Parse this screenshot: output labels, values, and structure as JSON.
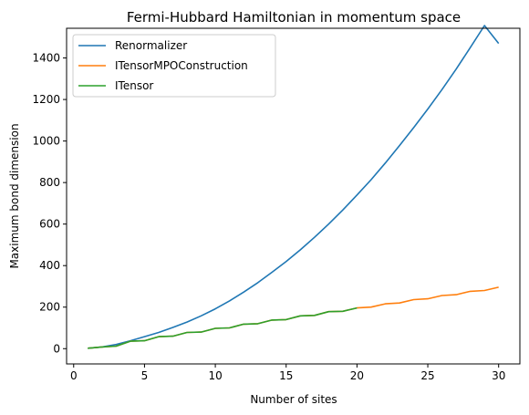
{
  "chart_data": {
    "type": "line",
    "title": "Fermi-Hubbard Hamiltonian in momentum space",
    "xlabel": "Number of sites",
    "ylabel": "Maximum bond dimension",
    "xlim": [
      -0.5,
      31.5
    ],
    "ylim": [
      -73.5,
      1543
    ],
    "xticks": [
      0,
      5,
      10,
      15,
      20,
      25,
      30
    ],
    "yticks": [
      0,
      200,
      400,
      600,
      800,
      1000,
      1200,
      1400
    ],
    "grid": false,
    "legend_position": "top-left",
    "series": [
      {
        "name": "Renormalizer",
        "color": "#1f77b4",
        "x": [
          1,
          2,
          3,
          4,
          5,
          6,
          7,
          8,
          9,
          10,
          11,
          12,
          13,
          14,
          15,
          16,
          17,
          18,
          19,
          20,
          21,
          22,
          23,
          24,
          25,
          26,
          27,
          28,
          29,
          30
        ],
        "y": [
          2,
          8,
          20,
          38,
          58,
          78,
          102,
          128,
          158,
          192,
          230,
          272,
          318,
          368,
          420,
          476,
          536,
          600,
          668,
          740,
          814,
          894,
          978,
          1064,
          1154,
          1248,
          1346,
          1450,
          1556,
          1470
        ]
      },
      {
        "name": "ITensorMPOConstruction",
        "color": "#ff7f0e",
        "x": [
          1,
          2,
          3,
          4,
          5,
          6,
          7,
          8,
          9,
          10,
          11,
          12,
          13,
          14,
          15,
          16,
          17,
          18,
          19,
          20,
          21,
          22,
          23,
          24,
          25,
          26,
          27,
          28,
          29,
          30
        ],
        "y": [
          2,
          8,
          12,
          36,
          38,
          58,
          60,
          78,
          80,
          98,
          100,
          118,
          120,
          138,
          140,
          158,
          160,
          178,
          180,
          196,
          200,
          216,
          220,
          236,
          240,
          256,
          260,
          276,
          280,
          296
        ]
      },
      {
        "name": "ITensor",
        "color": "#2ca02c",
        "x": [
          1,
          2,
          3,
          4,
          5,
          6,
          7,
          8,
          9,
          10,
          11,
          12,
          13,
          14,
          15,
          16,
          17,
          18,
          19,
          20
        ],
        "y": [
          2,
          8,
          12,
          36,
          38,
          58,
          60,
          78,
          80,
          98,
          100,
          118,
          120,
          138,
          140,
          158,
          160,
          178,
          180,
          196
        ]
      }
    ]
  }
}
